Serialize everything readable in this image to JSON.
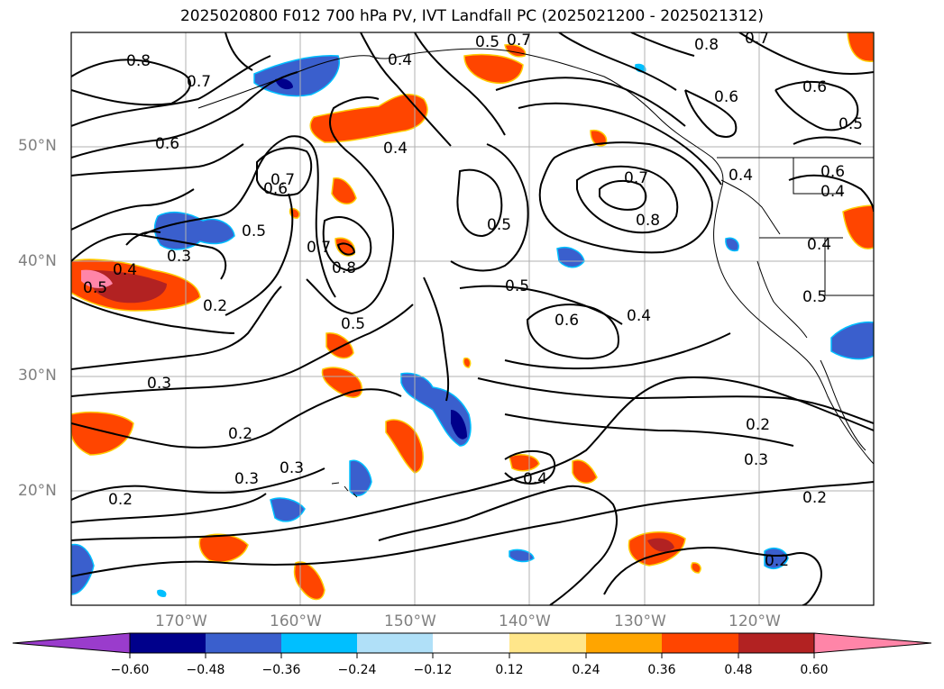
{
  "title": "2025020800 F012 700 hPa PV, IVT Landfall PC (2025021200 - 2025021312)",
  "lat_labels": [
    "50°N",
    "40°N",
    "30°N",
    "20°N"
  ],
  "lon_labels": [
    "170°W",
    "160°W",
    "150°W",
    "140°W",
    "130°W",
    "120°W"
  ],
  "contour_labels": [
    "0.8",
    "0.7",
    "0.6",
    "0.4",
    "0.5",
    "0.7",
    "0.8",
    "0.7",
    "0.6",
    "0.5",
    "0.4",
    "0.7",
    "0.6",
    "0.5",
    "0.7",
    "0.5",
    "0.8",
    "0.5",
    "0.7",
    "0.8",
    "0.6",
    "0.5",
    "0.4",
    "0.6",
    "0.6",
    "0.4",
    "0.4",
    "0.5",
    "0.4",
    "0.2",
    "0.5",
    "0.3",
    "0.2",
    "0.2",
    "0.3",
    "0.3",
    "0.3",
    "0.3",
    "0.2",
    "0.4",
    "0.4",
    "0.2",
    "0.2"
  ],
  "colorbar": {
    "ticks": [
      "−0.60",
      "−0.48",
      "−0.36",
      "−0.24",
      "−0.12",
      "0.12",
      "0.24",
      "0.36",
      "0.48",
      "0.60"
    ],
    "colors": [
      "#9a3ccc",
      "#00008b",
      "#3a5fcd",
      "#00bfff",
      "#b0e0f8",
      "#ffffff",
      "#ffe68a",
      "#ffa500",
      "#ff4500",
      "#b22222",
      "#ff85a8",
      "#ff85a8"
    ]
  }
}
